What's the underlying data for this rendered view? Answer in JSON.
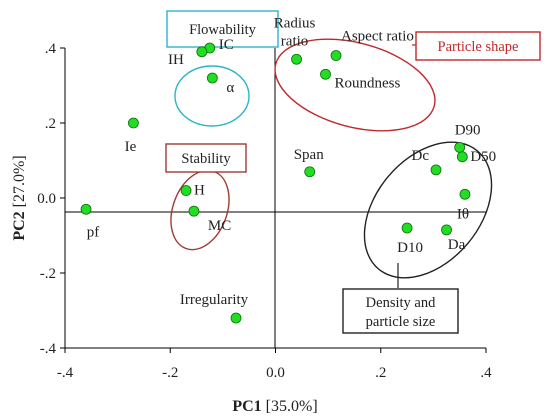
{
  "chart_data": {
    "type": "scatter",
    "xlabel": "PC1",
    "xlabel_unit": "[35.0%]",
    "ylabel": "PC2",
    "ylabel_unit": "[27.0%]",
    "xlim": [
      -0.4,
      0.4
    ],
    "ylim": [
      -0.4,
      0.4
    ],
    "x_ticks": [
      -0.4,
      -0.2,
      0.0,
      0.2,
      0.4
    ],
    "x_tick_labels": [
      "-.4",
      "-.2",
      "0.0",
      ".2",
      ".4"
    ],
    "y_ticks": [
      0.4,
      0.2,
      0.0,
      -0.2,
      -0.4
    ],
    "y_tick_labels": [
      ".4",
      ".2",
      "0.0",
      "-.2",
      "-.4"
    ],
    "grid": false,
    "marker_color": "#22dd22",
    "points": [
      {
        "label": "IC",
        "x": -0.125,
        "y": 0.4
      },
      {
        "label": "IH",
        "x": -0.14,
        "y": 0.39
      },
      {
        "label": "α",
        "x": -0.12,
        "y": 0.32
      },
      {
        "label": "Ie",
        "x": -0.27,
        "y": 0.2
      },
      {
        "label": "pf",
        "x": -0.36,
        "y": -0.03
      },
      {
        "label": "H",
        "x": -0.17,
        "y": 0.02
      },
      {
        "label": "MC",
        "x": -0.155,
        "y": -0.035
      },
      {
        "label": "Irregularity",
        "x": -0.075,
        "y": -0.32
      },
      {
        "label": "Radius ratio",
        "x": 0.04,
        "y": 0.37
      },
      {
        "label": "Aspect ratio",
        "x": 0.115,
        "y": 0.38
      },
      {
        "label": "Roundness",
        "x": 0.095,
        "y": 0.33
      },
      {
        "label": "Span",
        "x": 0.065,
        "y": 0.07
      },
      {
        "label": "Dc",
        "x": 0.305,
        "y": 0.075
      },
      {
        "label": "D90",
        "x": 0.35,
        "y": 0.135
      },
      {
        "label": "D50",
        "x": 0.355,
        "y": 0.11
      },
      {
        "label": "Iθ",
        "x": 0.36,
        "y": 0.01
      },
      {
        "label": "D10",
        "x": 0.25,
        "y": -0.08
      },
      {
        "label": "Da",
        "x": 0.325,
        "y": -0.085
      }
    ],
    "groups": [
      {
        "name": "Flowability",
        "color": "#2fb3c8"
      },
      {
        "name": "Particle shape",
        "color": "#c0292c"
      },
      {
        "name": "Stability",
        "color": "#a03a33"
      },
      {
        "name": "Density and particle size",
        "color": "#222222"
      }
    ]
  }
}
